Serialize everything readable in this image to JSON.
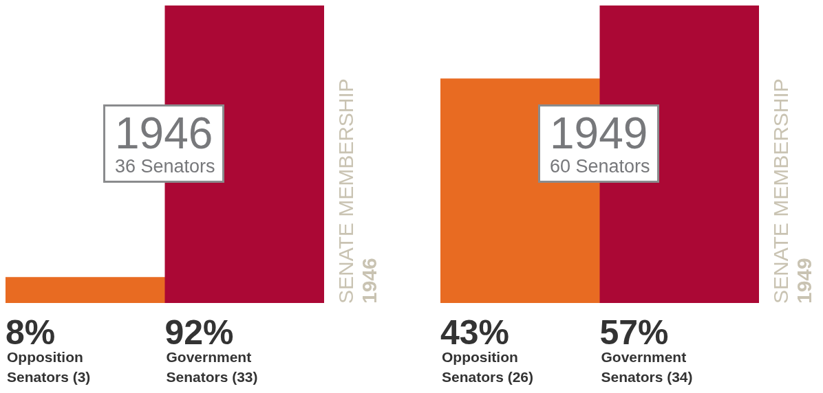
{
  "chart_data": [
    {
      "type": "bar",
      "title": "1946",
      "subtitle": "36 Senators",
      "categories": [
        "Opposition\nSenators (3)",
        "Government\nSenators (33)"
      ],
      "values": [
        8,
        92
      ],
      "colors": [
        "#e86b22",
        "#ab0835"
      ],
      "value_labels": [
        "8%",
        "92%"
      ],
      "annotations": [
        "SENATE MEMBERSHIP",
        "1946"
      ]
    },
    {
      "type": "bar",
      "title": "1949",
      "subtitle": "60 Senators",
      "categories": [
        "Opposition\nSenators (26)",
        "Government\nSenators (34)"
      ],
      "values": [
        43,
        57
      ],
      "colors": [
        "#e86b22",
        "#ab0835"
      ],
      "value_labels": [
        "43%",
        "57%"
      ],
      "annotations": [
        "SENATE MEMBERSHIP",
        "1949"
      ]
    }
  ]
}
